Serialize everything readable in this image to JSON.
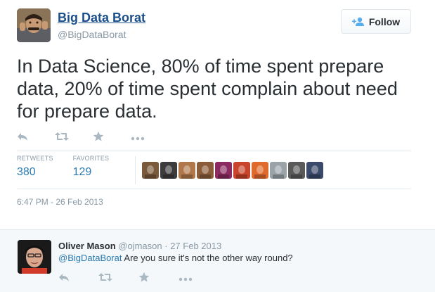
{
  "tweet": {
    "author_name": "Big Data Borat",
    "author_handle": "@BigDataBorat",
    "follow_label": "Follow",
    "text": "In Data Science, 80% of time spent prepare data, 20% of time spent complain about need for prepare data.",
    "stats": {
      "retweets_label": "RETWEETS",
      "retweets_value": "380",
      "favorites_label": "FAVORITES",
      "favorites_value": "129"
    },
    "timestamp": "6:47 PM - 26 Feb 2013",
    "actions": [
      "reply-icon",
      "retweet-icon",
      "favorite-icon",
      "more-icon"
    ],
    "favoriters": [
      {
        "name": "favoriter-avatar-1",
        "color": "#7a5a3a"
      },
      {
        "name": "favoriter-avatar-2",
        "color": "#3c3c3c"
      },
      {
        "name": "favoriter-avatar-3",
        "color": "#b0784a"
      },
      {
        "name": "favoriter-avatar-4",
        "color": "#8a5c3a"
      },
      {
        "name": "favoriter-avatar-5",
        "color": "#8a2a60"
      },
      {
        "name": "favoriter-avatar-6",
        "color": "#c8442a"
      },
      {
        "name": "favoriter-avatar-7",
        "color": "#e06a2c"
      },
      {
        "name": "favoriter-avatar-8",
        "color": "#9aa4a8"
      },
      {
        "name": "favoriter-avatar-9",
        "color": "#5a5a5a"
      },
      {
        "name": "favoriter-avatar-10",
        "color": "#3a4a6a"
      }
    ]
  },
  "reply": {
    "author_name": "Oliver Mason",
    "author_handle": "@ojmason",
    "separator": "·",
    "date": "27 Feb 2013",
    "mention": "@BigDataBorat",
    "text": " Are you sure it's not the other way round?",
    "actions": [
      "reply-icon",
      "retweet-icon",
      "favorite-icon",
      "more-icon"
    ]
  },
  "colors": {
    "link": "#2a7ab0",
    "name": "#1b4f8c",
    "muted": "#8899a6",
    "icon": "#aab8c2",
    "divider": "#e1e8ed",
    "reply_bg": "#f5f8fa"
  }
}
